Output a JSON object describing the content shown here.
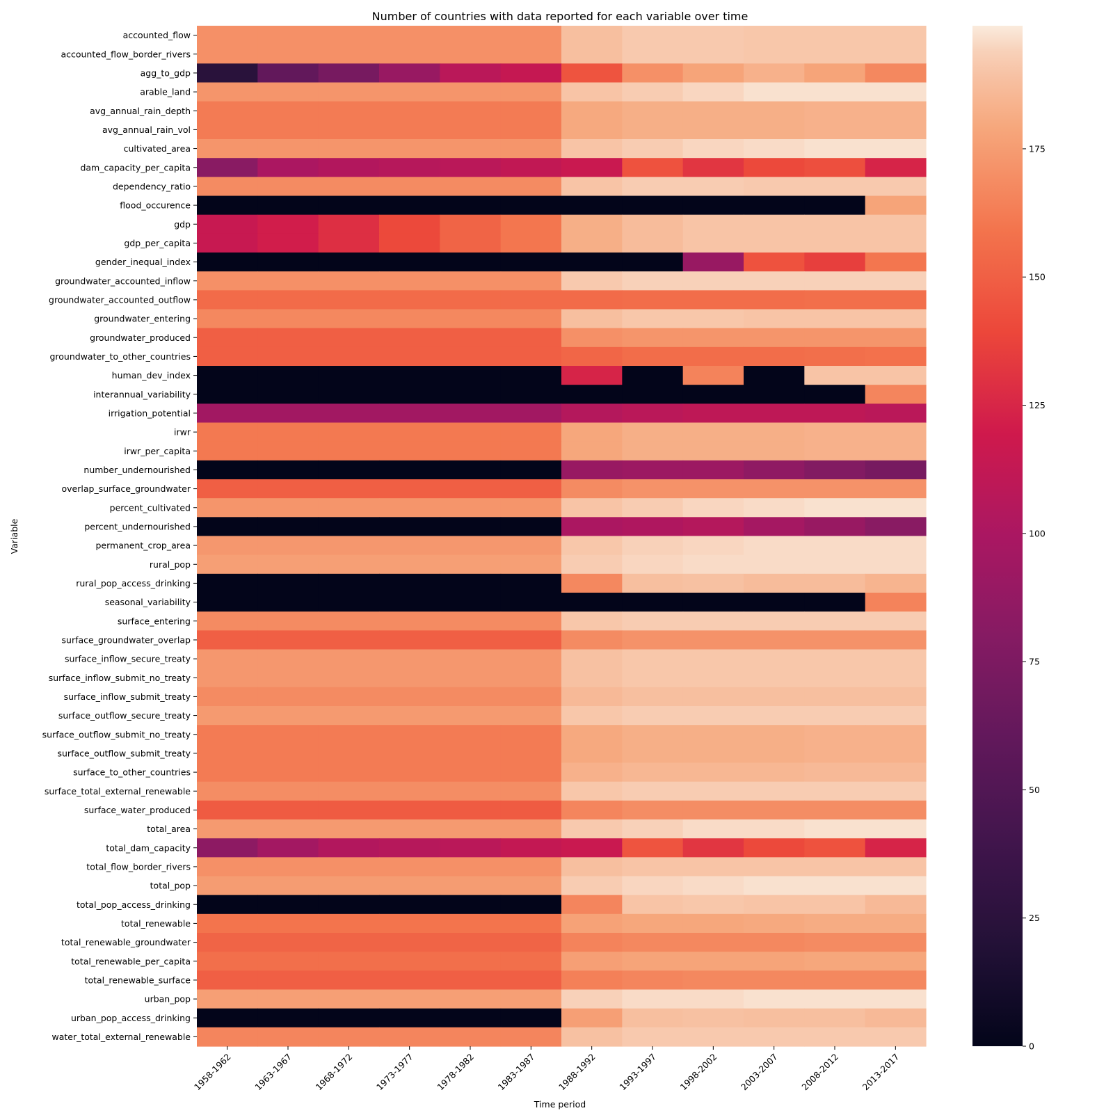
{
  "chart_data": {
    "type": "heatmap",
    "title": "Number of countries with data reported for each variable over time",
    "xlabel": "Time period",
    "ylabel": "Variable",
    "x": [
      "1958-1962",
      "1963-1967",
      "1968-1972",
      "1973-1977",
      "1978-1982",
      "1983-1987",
      "1988-1992",
      "1993-1997",
      "1998-2002",
      "2003-2007",
      "2008-2012",
      "2013-2017"
    ],
    "y": [
      "accounted_flow",
      "accounted_flow_border_rivers",
      "agg_to_gdp",
      "arable_land",
      "avg_annual_rain_depth",
      "avg_annual_rain_vol",
      "cultivated_area",
      "dam_capacity_per_capita",
      "dependency_ratio",
      "flood_occurence",
      "gdp",
      "gdp_per_capita",
      "gender_inequal_index",
      "groundwater_accounted_inflow",
      "groundwater_accounted_outflow",
      "groundwater_entering",
      "groundwater_produced",
      "groundwater_to_other_countries",
      "human_dev_index",
      "interannual_variability",
      "irrigation_potential",
      "irwr",
      "irwr_per_capita",
      "number_undernourished",
      "overlap_surface_groundwater",
      "percent_cultivated",
      "percent_undernourished",
      "permanent_crop_area",
      "rural_pop",
      "rural_pop_access_drinking",
      "seasonal_variability",
      "surface_entering",
      "surface_groundwater_overlap",
      "surface_inflow_secure_treaty",
      "surface_inflow_submit_no_treaty",
      "surface_inflow_submit_treaty",
      "surface_outflow_secure_treaty",
      "surface_outflow_submit_no_treaty",
      "surface_outflow_submit_treaty",
      "surface_to_other_countries",
      "surface_total_external_renewable",
      "surface_water_produced",
      "total_area",
      "total_dam_capacity",
      "total_flow_border_rivers",
      "total_pop",
      "total_pop_access_drinking",
      "total_renewable",
      "total_renewable_groundwater",
      "total_renewable_per_capita",
      "total_renewable_surface",
      "urban_pop",
      "urban_pop_access_drinking",
      "water_total_external_renewable"
    ],
    "values": [
      [
        170,
        170,
        170,
        170,
        170,
        170,
        188,
        192,
        192,
        191,
        191,
        191
      ],
      [
        170,
        170,
        170,
        170,
        170,
        170,
        188,
        192,
        192,
        191,
        191,
        191
      ],
      [
        24,
        60,
        72,
        90,
        108,
        114,
        145,
        170,
        178,
        183,
        178,
        167
      ],
      [
        172,
        172,
        172,
        172,
        172,
        172,
        190,
        193,
        195,
        197,
        197,
        197
      ],
      [
        162,
        162,
        162,
        162,
        162,
        162,
        180,
        182,
        182,
        182,
        183,
        183
      ],
      [
        162,
        162,
        162,
        162,
        162,
        162,
        180,
        182,
        182,
        182,
        183,
        183
      ],
      [
        172,
        172,
        172,
        172,
        172,
        172,
        190,
        193,
        195,
        196,
        197,
        197
      ],
      [
        82,
        100,
        104,
        106,
        108,
        112,
        116,
        144,
        132,
        140,
        143,
        124
      ],
      [
        168,
        168,
        168,
        168,
        168,
        168,
        190,
        193,
        193,
        192,
        192,
        192
      ],
      [
        0,
        0,
        0,
        0,
        0,
        0,
        0,
        0,
        0,
        0,
        0,
        178
      ],
      [
        115,
        121,
        129,
        140,
        152,
        160,
        182,
        187,
        190,
        190,
        190,
        190
      ],
      [
        115,
        121,
        129,
        140,
        152,
        160,
        182,
        187,
        190,
        190,
        190,
        190
      ],
      [
        0,
        0,
        0,
        0,
        0,
        0,
        0,
        0,
        90,
        144,
        136,
        160
      ],
      [
        170,
        170,
        170,
        170,
        170,
        170,
        192,
        194,
        194,
        194,
        194,
        194
      ],
      [
        155,
        155,
        155,
        155,
        155,
        155,
        155,
        156,
        156,
        156,
        157,
        157
      ],
      [
        167,
        167,
        167,
        167,
        167,
        167,
        188,
        191,
        191,
        190,
        190,
        190
      ],
      [
        150,
        150,
        150,
        150,
        150,
        150,
        170,
        172,
        172,
        172,
        172,
        172
      ],
      [
        150,
        150,
        150,
        150,
        150,
        150,
        153,
        156,
        156,
        156,
        157,
        158
      ],
      [
        0,
        0,
        0,
        0,
        0,
        0,
        124,
        0,
        165,
        0,
        190,
        190
      ],
      [
        0,
        0,
        0,
        0,
        0,
        0,
        0,
        0,
        0,
        0,
        0,
        166
      ],
      [
        95,
        95,
        95,
        95,
        95,
        95,
        105,
        108,
        110,
        110,
        110,
        108
      ],
      [
        161,
        161,
        161,
        161,
        161,
        161,
        179,
        182,
        182,
        182,
        183,
        183
      ],
      [
        161,
        161,
        161,
        161,
        161,
        161,
        179,
        182,
        182,
        182,
        183,
        183
      ],
      [
        0,
        0,
        0,
        0,
        0,
        0,
        90,
        92,
        92,
        85,
        78,
        72
      ],
      [
        150,
        150,
        150,
        150,
        150,
        150,
        168,
        171,
        171,
        171,
        171,
        171
      ],
      [
        172,
        172,
        172,
        172,
        172,
        172,
        190,
        193,
        195,
        196,
        197,
        197
      ],
      [
        0,
        0,
        0,
        0,
        0,
        0,
        100,
        102,
        105,
        97,
        90,
        82
      ],
      [
        173,
        173,
        173,
        173,
        173,
        173,
        191,
        194,
        195,
        196,
        196,
        196
      ],
      [
        176,
        176,
        176,
        176,
        176,
        176,
        193,
        195,
        196,
        196,
        196,
        196
      ],
      [
        0,
        0,
        0,
        0,
        0,
        0,
        167,
        188,
        189,
        187,
        187,
        184
      ],
      [
        0,
        0,
        0,
        0,
        0,
        0,
        0,
        0,
        0,
        0,
        0,
        165
      ],
      [
        168,
        168,
        168,
        168,
        168,
        168,
        191,
        193,
        193,
        193,
        193,
        193
      ],
      [
        150,
        150,
        150,
        150,
        150,
        150,
        168,
        171,
        171,
        171,
        171,
        171
      ],
      [
        173,
        173,
        173,
        173,
        173,
        173,
        189,
        191,
        191,
        191,
        191,
        191
      ],
      [
        173,
        173,
        173,
        173,
        173,
        173,
        189,
        191,
        191,
        191,
        191,
        191
      ],
      [
        168,
        168,
        168,
        168,
        168,
        168,
        186,
        188,
        188,
        188,
        188,
        188
      ],
      [
        174,
        174,
        174,
        174,
        174,
        174,
        191,
        193,
        193,
        193,
        193,
        193
      ],
      [
        162,
        162,
        162,
        162,
        162,
        162,
        180,
        182,
        182,
        182,
        183,
        183
      ],
      [
        162,
        162,
        162,
        162,
        162,
        162,
        180,
        182,
        182,
        182,
        183,
        183
      ],
      [
        162,
        162,
        162,
        162,
        162,
        162,
        183,
        185,
        185,
        185,
        186,
        186
      ],
      [
        169,
        169,
        169,
        169,
        169,
        169,
        191,
        193,
        193,
        193,
        193,
        193
      ],
      [
        148,
        148,
        148,
        148,
        148,
        148,
        166,
        169,
        169,
        169,
        169,
        169
      ],
      [
        174,
        174,
        174,
        174,
        174,
        174,
        192,
        194,
        196,
        196,
        197,
        197
      ],
      [
        84,
        96,
        104,
        106,
        108,
        113,
        116,
        145,
        132,
        140,
        144,
        124
      ],
      [
        170,
        170,
        170,
        170,
        170,
        170,
        188,
        190,
        190,
        190,
        190,
        190
      ],
      [
        175,
        175,
        175,
        175,
        175,
        175,
        193,
        195,
        196,
        197,
        197,
        197
      ],
      [
        0,
        0,
        0,
        0,
        0,
        0,
        166,
        190,
        191,
        190,
        190,
        186
      ],
      [
        159,
        159,
        159,
        159,
        159,
        159,
        177,
        179,
        179,
        180,
        181,
        181
      ],
      [
        152,
        152,
        152,
        152,
        152,
        152,
        165,
        167,
        167,
        167,
        168,
        168
      ],
      [
        157,
        157,
        157,
        157,
        157,
        157,
        176,
        178,
        178,
        178,
        179,
        179
      ],
      [
        150,
        150,
        150,
        150,
        150,
        150,
        164,
        166,
        167,
        167,
        167,
        167
      ],
      [
        176,
        176,
        176,
        176,
        176,
        176,
        194,
        196,
        196,
        197,
        197,
        197
      ],
      [
        0,
        0,
        0,
        0,
        0,
        0,
        176,
        188,
        189,
        188,
        188,
        186
      ],
      [
        166,
        166,
        166,
        166,
        166,
        166,
        189,
        192,
        192,
        192,
        192,
        192
      ]
    ],
    "vmin": 0,
    "vmax": 199,
    "colormap": "rocket",
    "colorbar_ticks": [
      0,
      25,
      50,
      75,
      100,
      125,
      150,
      175
    ]
  }
}
